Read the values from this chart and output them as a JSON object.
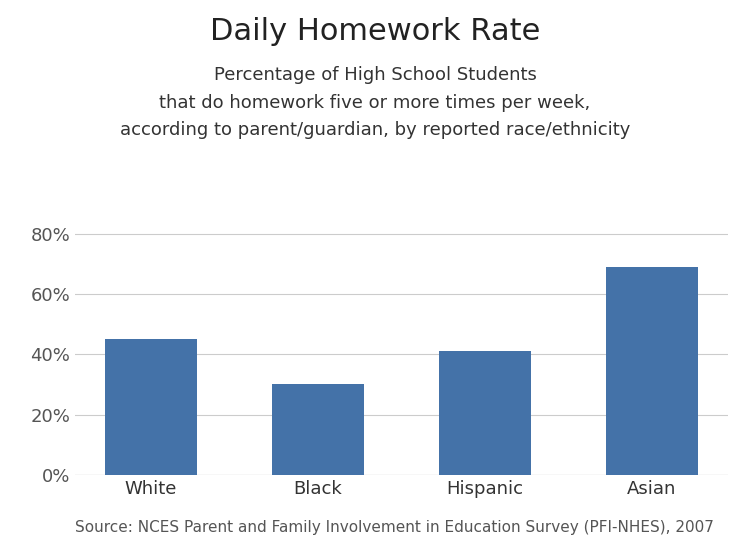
{
  "title": "Daily Homework Rate",
  "subtitle_line1": "Percentage of High School Students",
  "subtitle_line2": "that do homework five or more times per week,",
  "subtitle_line3": "according to parent/guardian, by reported race/ethnicity",
  "categories": [
    "White",
    "Black",
    "Hispanic",
    "Asian"
  ],
  "values": [
    0.45,
    0.3,
    0.41,
    0.69
  ],
  "bar_color": "#4472a8",
  "ylim": [
    0,
    0.88
  ],
  "yticks": [
    0.0,
    0.2,
    0.4,
    0.6,
    0.8
  ],
  "ytick_labels": [
    "0%",
    "20%",
    "40%",
    "60%",
    "80%"
  ],
  "source_text": "Source: NCES Parent and Family Involvement in Education Survey (PFI-NHES), 2007",
  "background_color": "#ffffff",
  "title_fontsize": 22,
  "subtitle_fontsize": 13,
  "tick_fontsize": 13,
  "source_fontsize": 11
}
